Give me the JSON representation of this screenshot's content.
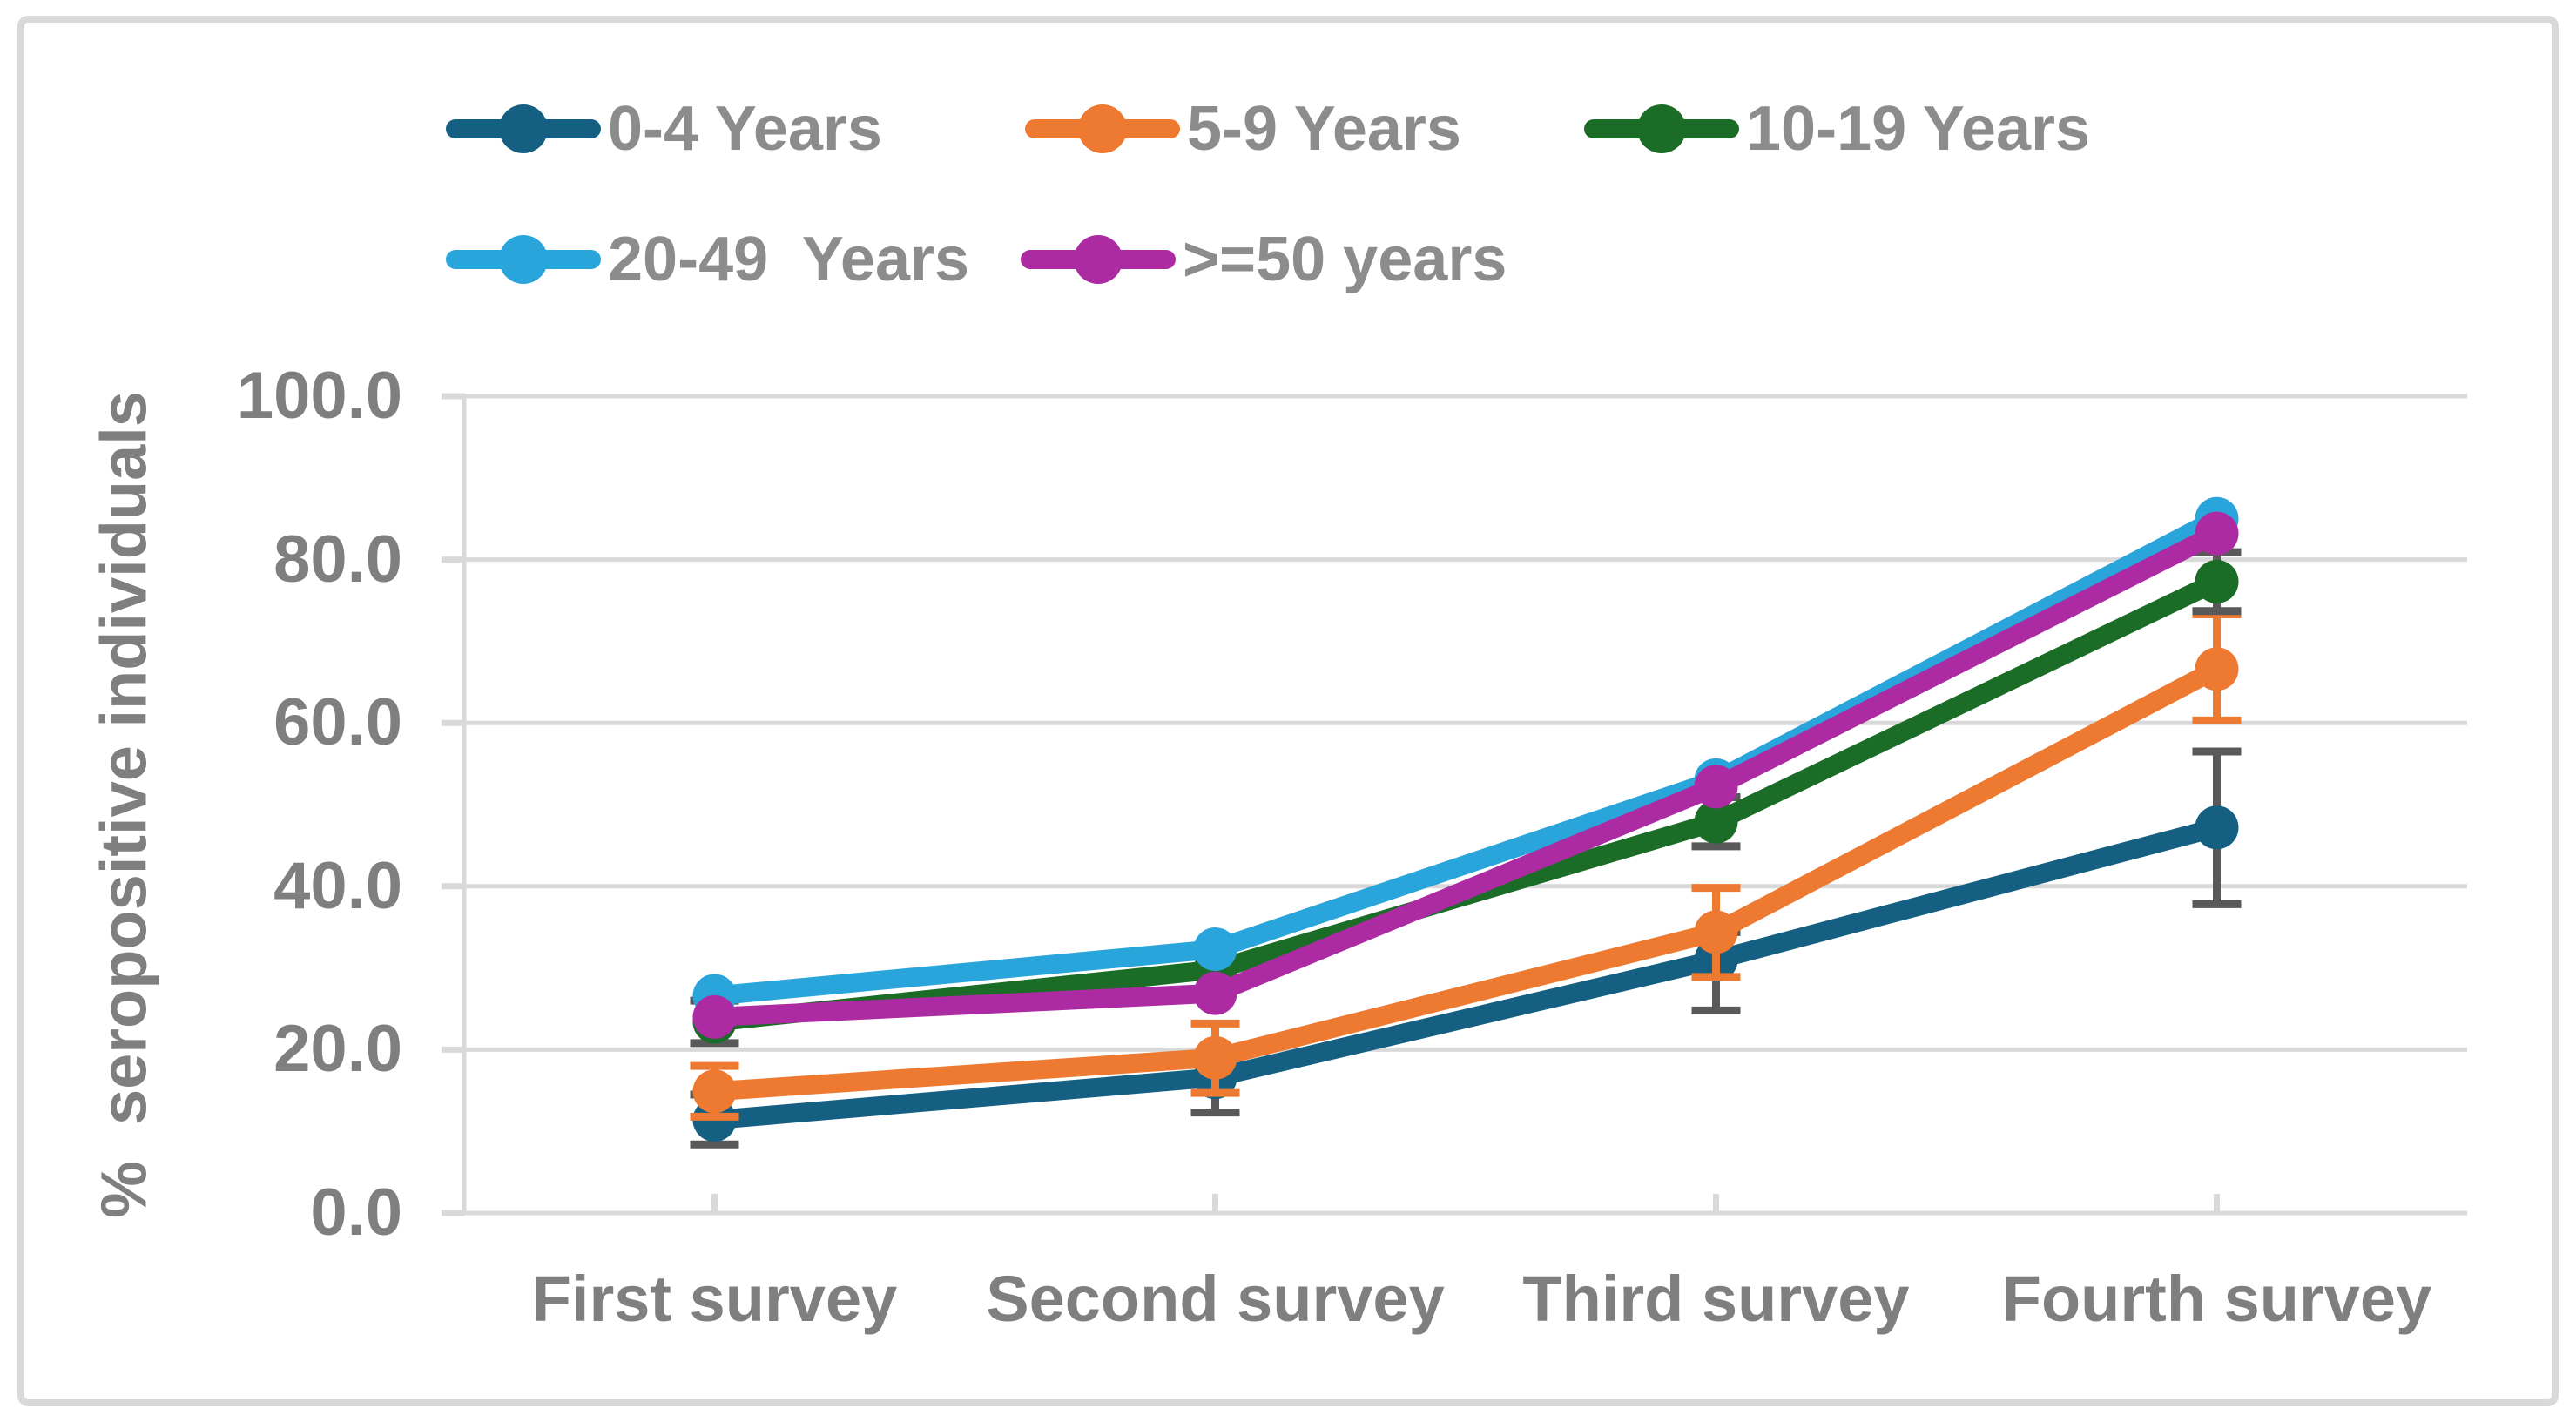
{
  "page": {
    "background": "#FFFFFF",
    "frame_border_color": "#D9D9D9"
  },
  "chart_data": {
    "type": "line",
    "title": "",
    "xlabel": "",
    "ylabel": "%  seropositive individuals",
    "categories": [
      "First survey",
      "Second survey",
      "Third survey",
      "Fourth survey"
    ],
    "y_ticks": [
      100.0,
      80.0,
      60.0,
      40.0,
      20.0,
      0.0
    ],
    "ylim": [
      0,
      100
    ],
    "grid": true,
    "legend_position": "top",
    "gridline_color": "#D9D9D9",
    "axis_text_color": "#7F7F7F",
    "legend_text_color": "#8C8C8C",
    "error_bar_gray": "#595959",
    "series": [
      {
        "name": "0-4 Years",
        "color": "#156082",
        "marker": "circle",
        "error_bar_color": "#595959",
        "values": [
          11.4,
          16.6,
          31.0,
          47.2
        ],
        "error_low": [
          8.4,
          12.3,
          24.8,
          37.8
        ],
        "error_high": [
          14.5,
          19.0,
          34.4,
          56.5
        ]
      },
      {
        "name": "5-9 Years",
        "color": "#EE7A31",
        "marker": "circle",
        "error_bar_color": "#EE7A31",
        "values": [
          14.9,
          19.0,
          34.4,
          66.6
        ],
        "error_low": [
          11.8,
          14.7,
          28.9,
          60.3
        ],
        "error_high": [
          18.0,
          23.2,
          39.8,
          73.3
        ]
      },
      {
        "name": "10-19 Years",
        "color": "#1B6C27",
        "marker": "circle",
        "error_bar_color": "#595959",
        "values": [
          23.4,
          29.8,
          47.9,
          77.3
        ],
        "error_low": [
          20.8,
          null,
          44.9,
          73.7
        ],
        "error_high": [
          26.0,
          null,
          50.9,
          80.9
        ]
      },
      {
        "name": "20-49  Years",
        "color": "#29A5DB",
        "marker": "circle",
        "error_bar_color": null,
        "values": [
          26.6,
          32.3,
          53.0,
          85.0
        ],
        "error_low": [
          null,
          null,
          null,
          null
        ],
        "error_high": [
          null,
          null,
          null,
          null
        ]
      },
      {
        "name": ">=50 years",
        "color": "#AC2BA2",
        "marker": "circle",
        "error_bar_color": null,
        "values": [
          24.0,
          26.9,
          52.2,
          83.2
        ],
        "error_low": [
          null,
          null,
          null,
          null
        ],
        "error_high": [
          null,
          null,
          null,
          null
        ]
      }
    ]
  }
}
